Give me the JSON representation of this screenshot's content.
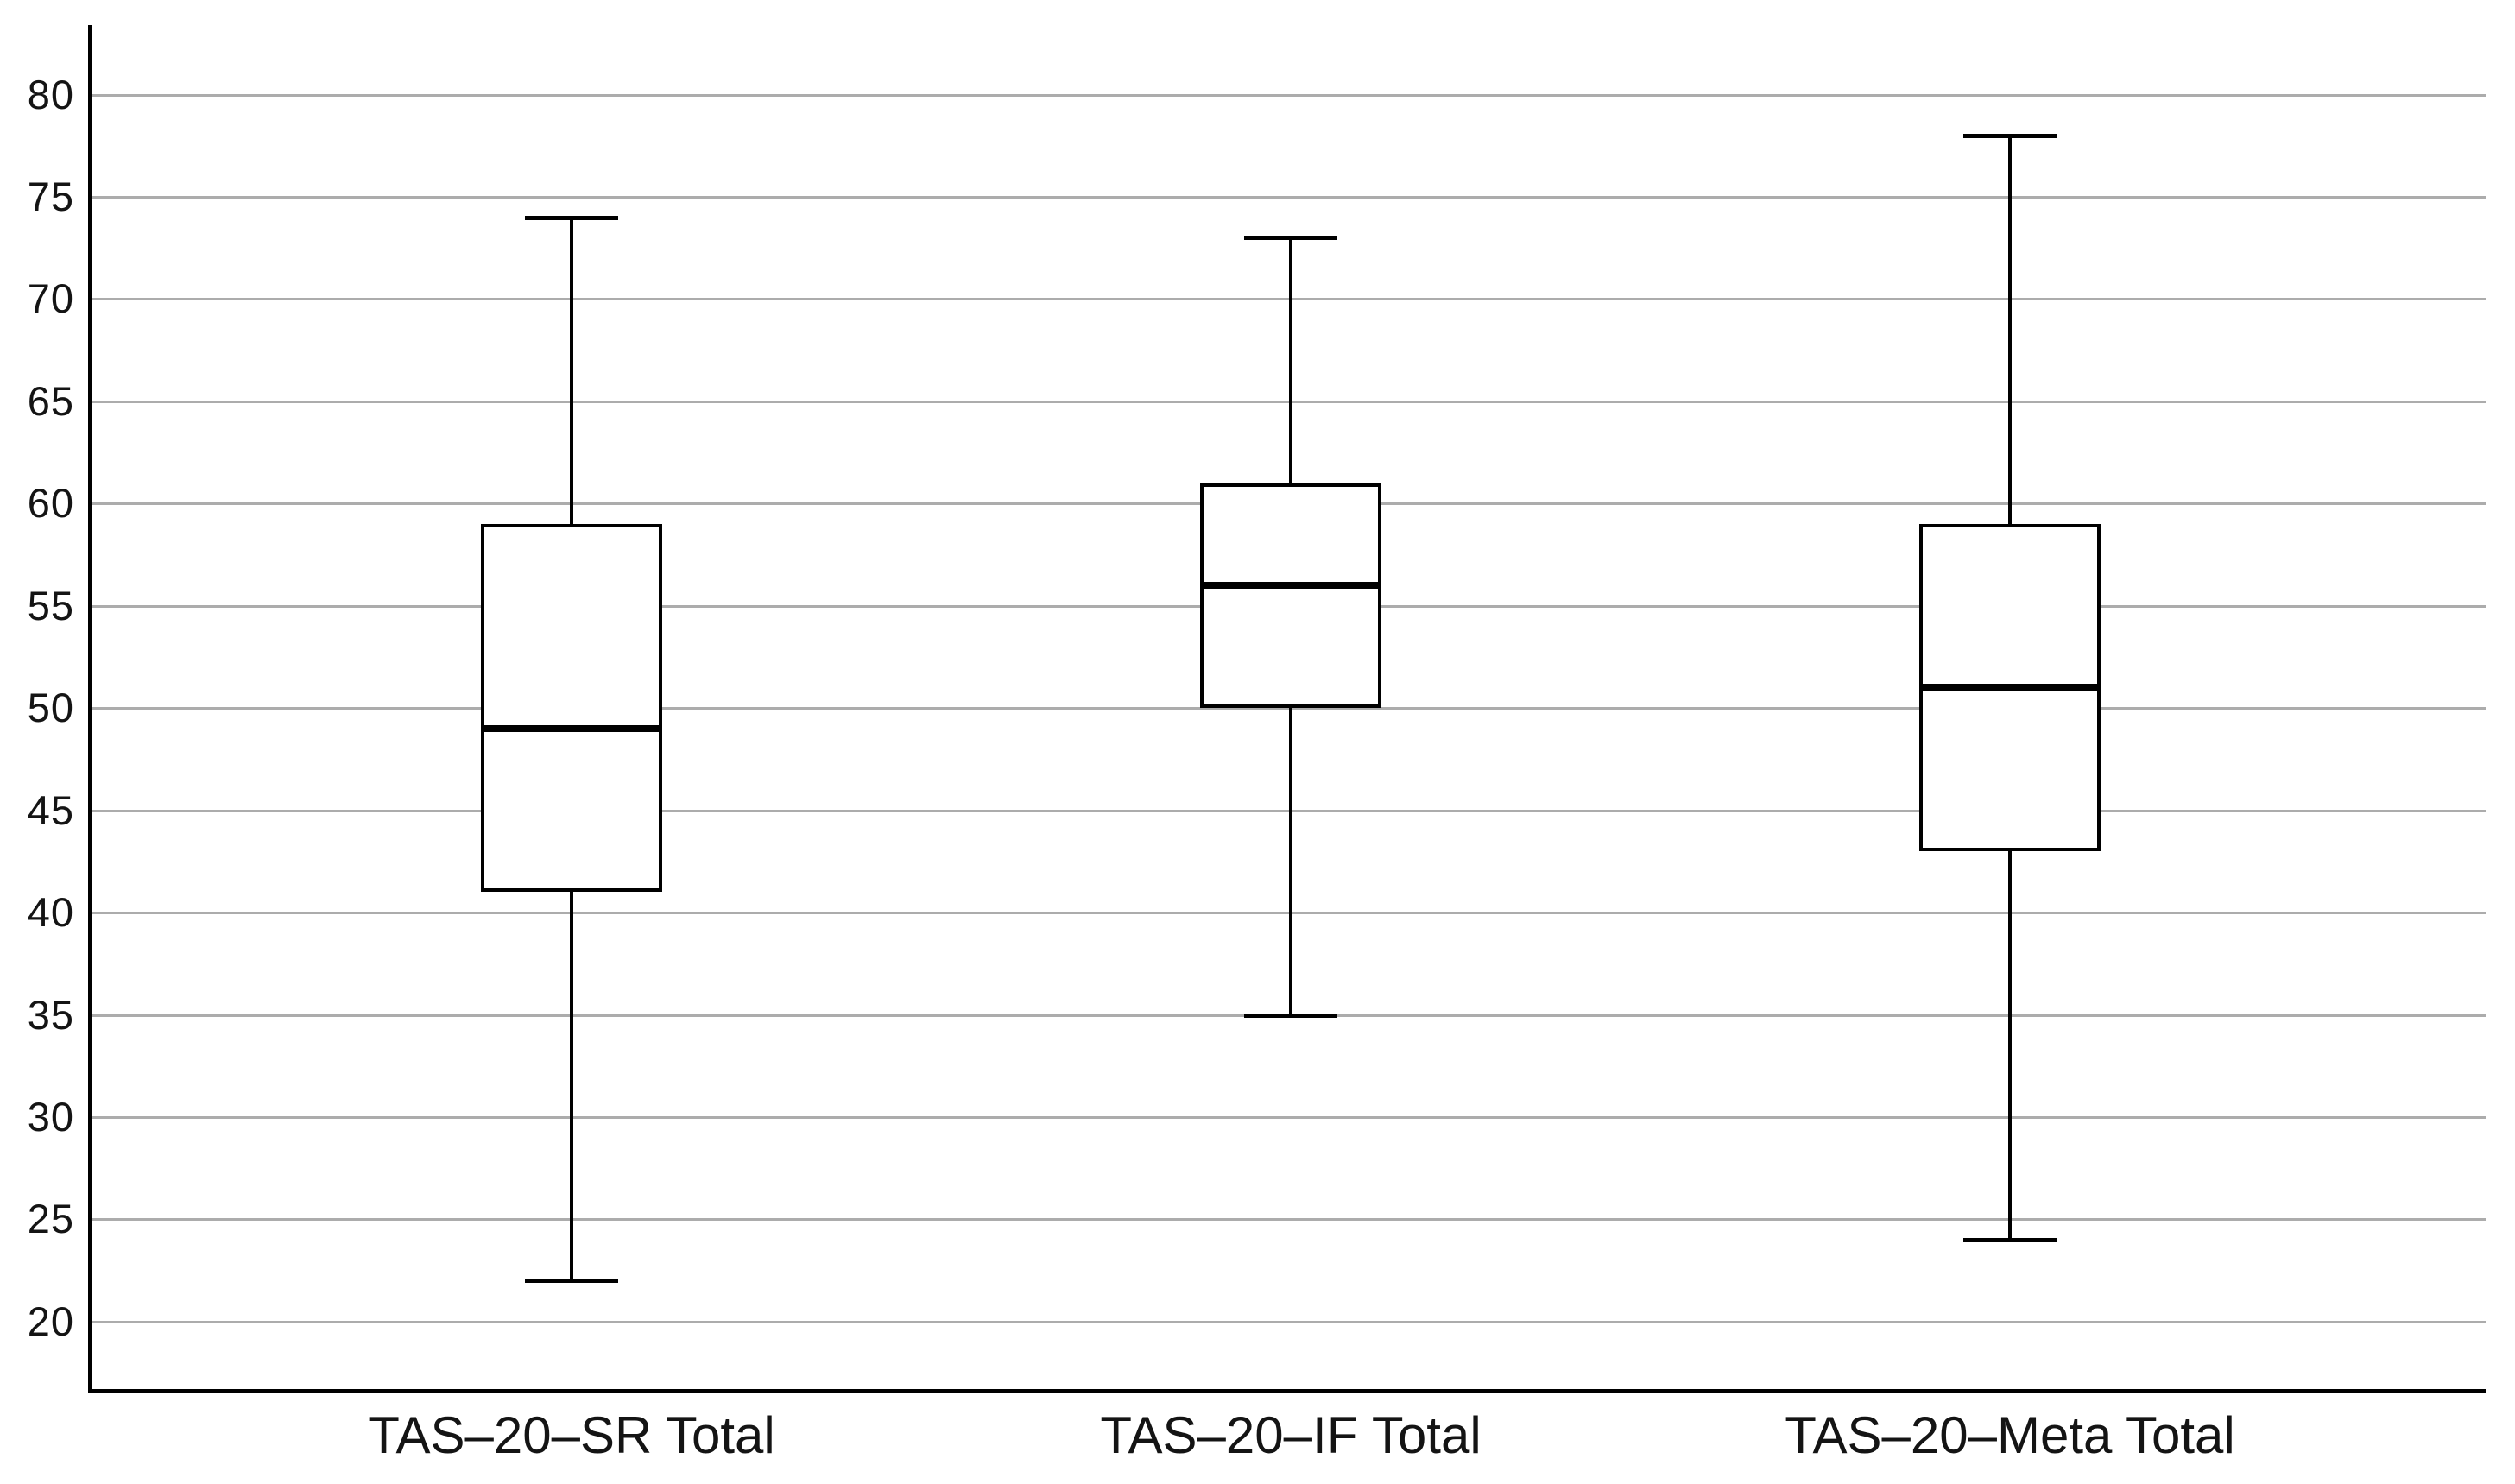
{
  "chart_data": {
    "type": "boxplot",
    "title": "",
    "categories": [
      "TAS–20–SR Total",
      "TAS–20–IF Total",
      "TAS–20–Meta Total"
    ],
    "boxes": [
      {
        "label": "TAS–20–SR Total",
        "whisker_low": 22,
        "q1": 41,
        "median": 49,
        "q3": 59,
        "whisker_high": 74
      },
      {
        "label": "TAS–20–IF Total",
        "whisker_low": 35,
        "q1": 50,
        "median": 56,
        "q3": 61,
        "whisker_high": 73
      },
      {
        "label": "TAS–20–Meta Total",
        "whisker_low": 24,
        "q1": 43,
        "median": 51,
        "q3": 59,
        "whisker_high": 78
      }
    ],
    "y_axis": {
      "ticks": [
        80,
        75,
        70,
        65,
        60,
        55,
        50,
        45,
        40,
        35,
        30,
        25,
        20
      ],
      "ylim": [
        16.7,
        83.4
      ],
      "gridlines": true
    },
    "x_axis": {
      "labels": [
        "TAS–20–SR Total",
        "TAS–20–IF Total",
        "TAS–20–Meta Total"
      ]
    },
    "legend": null,
    "colors": {
      "background": "#FFFFFF",
      "box_border": "#000000",
      "median": "#000000",
      "whisker": "#000000",
      "axis": "#000000",
      "gridline": "#ACACAC",
      "text": "#141414"
    }
  }
}
